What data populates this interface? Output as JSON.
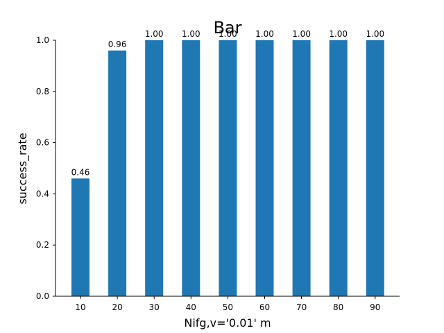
{
  "chart_data": {
    "type": "bar",
    "title": "Bar",
    "xlabel": "Nifg,v='0.01' m",
    "ylabel": "success_rate",
    "categories": [
      "10",
      "20",
      "30",
      "40",
      "50",
      "60",
      "70",
      "80",
      "90"
    ],
    "values": [
      0.46,
      0.96,
      1.0,
      1.0,
      1.0,
      1.0,
      1.0,
      1.0,
      1.0
    ],
    "value_labels": [
      "0.46",
      "0.96",
      "1.00",
      "1.00",
      "1.00",
      "1.00",
      "1.00",
      "1.00",
      "1.00"
    ],
    "y_ticks": [
      "0.0",
      "0.2",
      "0.4",
      "0.6",
      "0.8",
      "1.0"
    ],
    "ylim": [
      0,
      1.0
    ],
    "grid": false,
    "bar_color": "#1f77b4",
    "axis_color": "#000000"
  }
}
